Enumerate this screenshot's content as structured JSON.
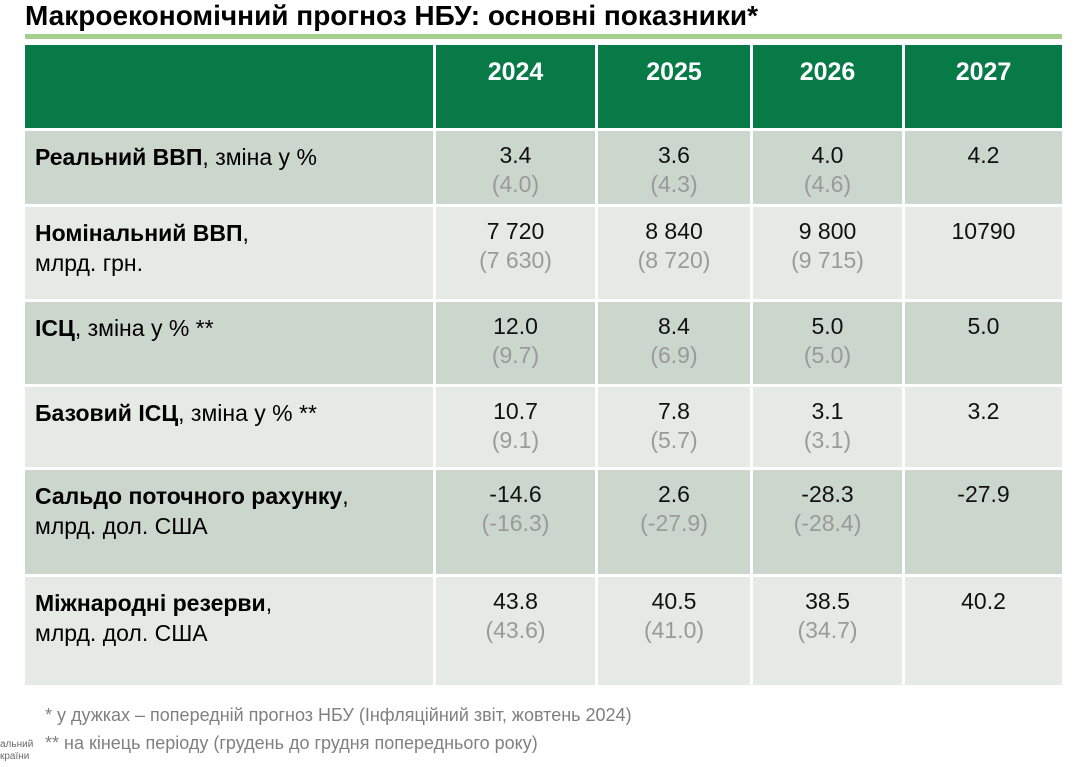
{
  "title": "Макроекономічний прогноз НБУ: основні показники*",
  "colors": {
    "header_green": "#077a48",
    "title_rule_green": "#a3d18d",
    "row_dark": "#cbd6cc",
    "row_light": "#e5eae5",
    "value_text": "#111111",
    "previous_forecast_gray": "#9a9a9a",
    "footnote_gray": "#808080"
  },
  "table": {
    "years": [
      "2024",
      "2025",
      "2026",
      "2027"
    ],
    "rows": [
      {
        "label_bold": "Реальний ВВП",
        "label_rest": ", зміна у %",
        "label_line2": "",
        "values": [
          "3.4",
          "3.6",
          "4.0",
          "4.2"
        ],
        "prev": [
          "(4.0)",
          "(4.3)",
          "(4.6)",
          ""
        ]
      },
      {
        "label_bold": "Номінальний ВВП",
        "label_rest": ",",
        "label_line2": "млрд. грн.",
        "values": [
          "7 720",
          "8 840",
          "9 800",
          "10790"
        ],
        "prev": [
          "(7 630)",
          "(8 720)",
          "(9 715)",
          ""
        ]
      },
      {
        "label_bold": "ІСЦ",
        "label_rest": ", зміна у % **",
        "label_line2": "",
        "values": [
          "12.0",
          "8.4",
          "5.0",
          "5.0"
        ],
        "prev": [
          "(9.7)",
          "(6.9)",
          "(5.0)",
          ""
        ]
      },
      {
        "label_bold": "Базовий ІСЦ",
        "label_rest": ", зміна у % **",
        "label_line2": "",
        "values": [
          "10.7",
          "7.8",
          "3.1",
          "3.2"
        ],
        "prev": [
          "(9.1)",
          "(5.7)",
          "(3.1)",
          ""
        ]
      },
      {
        "label_bold": "Сальдо поточного рахунку",
        "label_rest": ",",
        "label_line2": "млрд. дол. США",
        "values": [
          "-14.6",
          "2.6",
          "-28.3",
          "-27.9"
        ],
        "prev": [
          "(-16.3)",
          "(-27.9)",
          "(-28.4)",
          ""
        ]
      },
      {
        "label_bold": "Міжнародні резерви",
        "label_rest": ",",
        "label_line2": "млрд. дол. США",
        "values": [
          "43.8",
          "40.5",
          "38.5",
          "40.2"
        ],
        "prev": [
          "(43.6)",
          "(41.0)",
          "(34.7)",
          ""
        ]
      }
    ]
  },
  "footnotes": [
    "* у дужках – попередній прогноз НБУ (Інфляційний звіт, жовтень 2024)",
    "** на кінець періоду (грудень до грудня попереднього року)"
  ],
  "logo_fragment": {
    "line1": "альний",
    "line2": "країни"
  }
}
